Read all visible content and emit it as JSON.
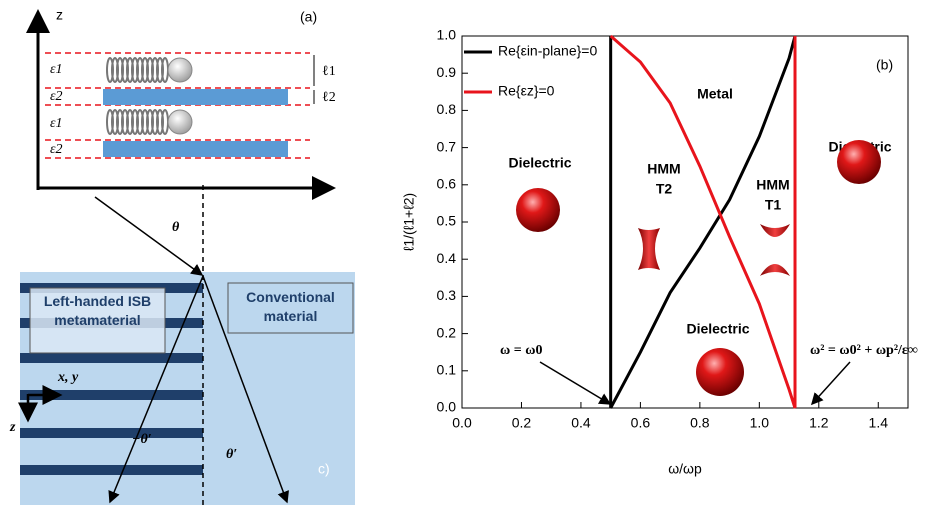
{
  "chart_data": {
    "type": "line",
    "panel_label": "(b)",
    "x_label": "ω/ωp",
    "y_label": "ℓ1/(ℓ1+ℓ2)",
    "xlim": [
      0,
      1.5
    ],
    "ylim": [
      0,
      1
    ],
    "xticks": [
      {
        "value": 0,
        "label": "0.0"
      },
      0.2,
      0.4,
      0.6,
      0.8,
      {
        "value": 1,
        "label": "1.0"
      },
      1.2,
      1.4
    ],
    "yticks": [
      {
        "value": 0,
        "label": "0.0"
      },
      0.1,
      0.2,
      0.3,
      0.4,
      0.5,
      0.6,
      0.7,
      0.8,
      0.9,
      {
        "value": 1,
        "label": "1.0"
      }
    ],
    "legend": "upper left",
    "series": [
      {
        "name": "Re{εin-plane}=0",
        "color": "#000000",
        "x": [
          0.5,
          0.5,
          0.6,
          0.7,
          0.8,
          0.9,
          1.0,
          1.1,
          1.12
        ],
        "values": [
          1.0,
          0.0,
          0.15,
          0.31,
          0.43,
          0.56,
          0.73,
          0.94,
          1.0
        ]
      },
      {
        "name": "Re{εz}=0",
        "color": "#e8141c",
        "x": [
          0.5,
          0.6,
          0.7,
          0.8,
          0.9,
          1.0,
          1.1,
          1.12,
          1.12
        ],
        "values": [
          1.0,
          0.93,
          0.82,
          0.65,
          0.46,
          0.28,
          0.05,
          0.0,
          1.0
        ]
      }
    ],
    "annotations": [
      "Metal",
      "Dielectric",
      "Dielectric",
      "Dielectric",
      "HMM",
      "T2",
      "HMM",
      "T1",
      "ω = ω0",
      "ω² = ω0² + ωp²/ε∞"
    ]
  },
  "panel_a": {
    "label": "(a)",
    "axis": "z",
    "layers": [
      "ε1",
      "ε2",
      "ε1",
      "ε2"
    ],
    "thicknesses": [
      "ℓ1",
      "ℓ2"
    ]
  },
  "panel_c": {
    "label": "c)",
    "left": "Left-handed ISB metamaterial",
    "right": "Conventional material",
    "axes": [
      "x, y",
      "z"
    ],
    "angles": [
      "θ",
      "−θ′",
      "θ′"
    ]
  }
}
